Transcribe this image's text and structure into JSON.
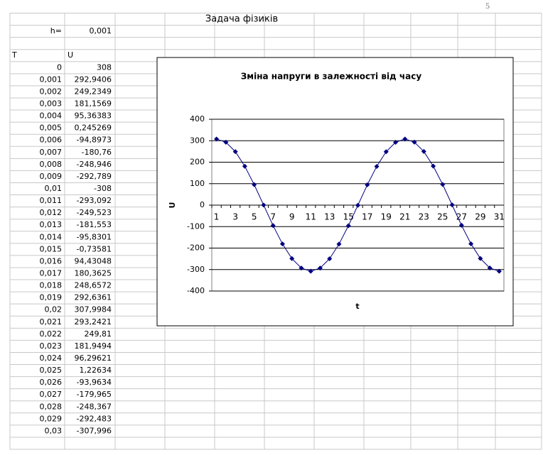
{
  "page_number": "5",
  "sheet": {
    "title": "Задача фізиків",
    "h_label": "h=",
    "h_value": "0,001",
    "headers": [
      "T",
      "U"
    ],
    "rows": [
      [
        "0",
        "308"
      ],
      [
        "0,001",
        "292,9406"
      ],
      [
        "0,002",
        "249,2349"
      ],
      [
        "0,003",
        "181,1569"
      ],
      [
        "0,004",
        "95,36383"
      ],
      [
        "0,005",
        "0,245269"
      ],
      [
        "0,006",
        "-94,8973"
      ],
      [
        "0,007",
        "-180,76"
      ],
      [
        "0,008",
        "-248,946"
      ],
      [
        "0,009",
        "-292,789"
      ],
      [
        "0,01",
        "-308"
      ],
      [
        "0,011",
        "-293,092"
      ],
      [
        "0,012",
        "-249,523"
      ],
      [
        "0,013",
        "-181,553"
      ],
      [
        "0,014",
        "-95,8301"
      ],
      [
        "0,015",
        "-0,73581"
      ],
      [
        "0,016",
        "94,43048"
      ],
      [
        "0,017",
        "180,3625"
      ],
      [
        "0,018",
        "248,6572"
      ],
      [
        "0,019",
        "292,6361"
      ],
      [
        "0,02",
        "307,9984"
      ],
      [
        "0,021",
        "293,2421"
      ],
      [
        "0,022",
        "249,81"
      ],
      [
        "0,023",
        "181,9494"
      ],
      [
        "0,024",
        "96,29621"
      ],
      [
        "0,025",
        "1,22634"
      ],
      [
        "0,026",
        "-93,9634"
      ],
      [
        "0,027",
        "-179,965"
      ],
      [
        "0,028",
        "-248,367"
      ],
      [
        "0,029",
        "-292,483"
      ],
      [
        "0,03",
        "-307,996"
      ]
    ]
  },
  "chart_data": {
    "type": "line",
    "title": "Зміна напруги в залежності від часу",
    "x_label": "t",
    "y_label": "U",
    "categories": [
      1,
      null,
      3,
      null,
      5,
      null,
      7,
      null,
      9,
      null,
      11,
      null,
      13,
      null,
      15,
      null,
      17,
      null,
      19,
      null,
      21,
      null,
      23,
      null,
      25,
      null,
      27,
      null,
      29,
      null,
      31
    ],
    "series": [
      {
        "color": "#000080",
        "values": [
          308,
          292.9406,
          249.2349,
          181.1569,
          95.36383,
          0.245269,
          -94.8973,
          -180.76,
          -248.946,
          -292.789,
          -308,
          -293.092,
          -249.523,
          -181.553,
          -95.8301,
          -0.73581,
          94.43048,
          180.3625,
          248.6572,
          292.6361,
          307.9984,
          293.2421,
          249.81,
          181.9494,
          96.29621,
          1.22634,
          -93.9634,
          -179.965,
          -248.367,
          -292.483,
          -307.996
        ]
      }
    ],
    "ylim": [
      -400,
      400
    ],
    "yticks": [
      -400,
      -300,
      -200,
      -100,
      0,
      100,
      200,
      300,
      400
    ],
    "grid": true
  }
}
